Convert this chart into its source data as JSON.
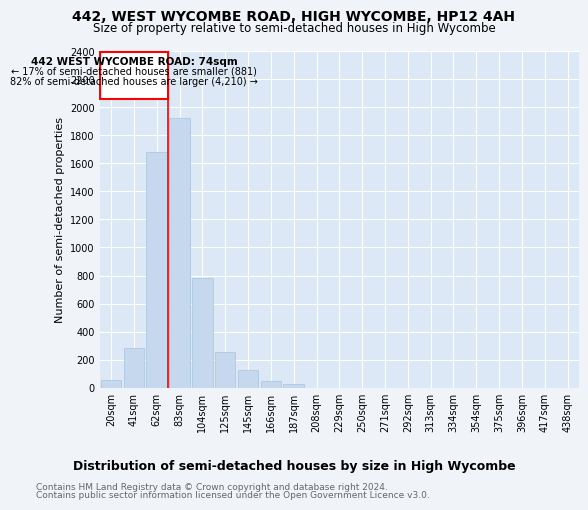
{
  "title": "442, WEST WYCOMBE ROAD, HIGH WYCOMBE, HP12 4AH",
  "subtitle": "Size of property relative to semi-detached houses in High Wycombe",
  "xlabel": "Distribution of semi-detached houses by size in High Wycombe",
  "ylabel": "Number of semi-detached properties",
  "bar_color": "#c5d8ed",
  "bar_edge_color": "#a8c4de",
  "categories": [
    "20sqm",
    "41sqm",
    "62sqm",
    "83sqm",
    "104sqm",
    "125sqm",
    "145sqm",
    "166sqm",
    "187sqm",
    "208sqm",
    "229sqm",
    "250sqm",
    "271sqm",
    "292sqm",
    "313sqm",
    "334sqm",
    "354sqm",
    "375sqm",
    "396sqm",
    "417sqm",
    "438sqm"
  ],
  "values": [
    55,
    285,
    1680,
    1920,
    780,
    255,
    130,
    45,
    30,
    0,
    0,
    0,
    0,
    0,
    0,
    0,
    0,
    0,
    0,
    0,
    0
  ],
  "red_line_x": 2.5,
  "annotation_title": "442 WEST WYCOMBE ROAD: 74sqm",
  "annotation_line1": "← 17% of semi-detached houses are smaller (881)",
  "annotation_line2": "82% of semi-detached houses are larger (4,210) →",
  "footnote1": "Contains HM Land Registry data © Crown copyright and database right 2024.",
  "footnote2": "Contains public sector information licensed under the Open Government Licence v3.0.",
  "ylim": [
    0,
    2400
  ],
  "yticks": [
    0,
    200,
    400,
    600,
    800,
    1000,
    1200,
    1400,
    1600,
    1800,
    2000,
    2200,
    2400
  ],
  "background_color": "#f0f4f8",
  "plot_bg_color": "#dce8f5",
  "grid_color": "#ffffff",
  "title_fontsize": 10,
  "subtitle_fontsize": 8.5,
  "ylabel_fontsize": 8,
  "xlabel_fontsize": 9,
  "tick_fontsize": 7,
  "footnote_fontsize": 6.5
}
